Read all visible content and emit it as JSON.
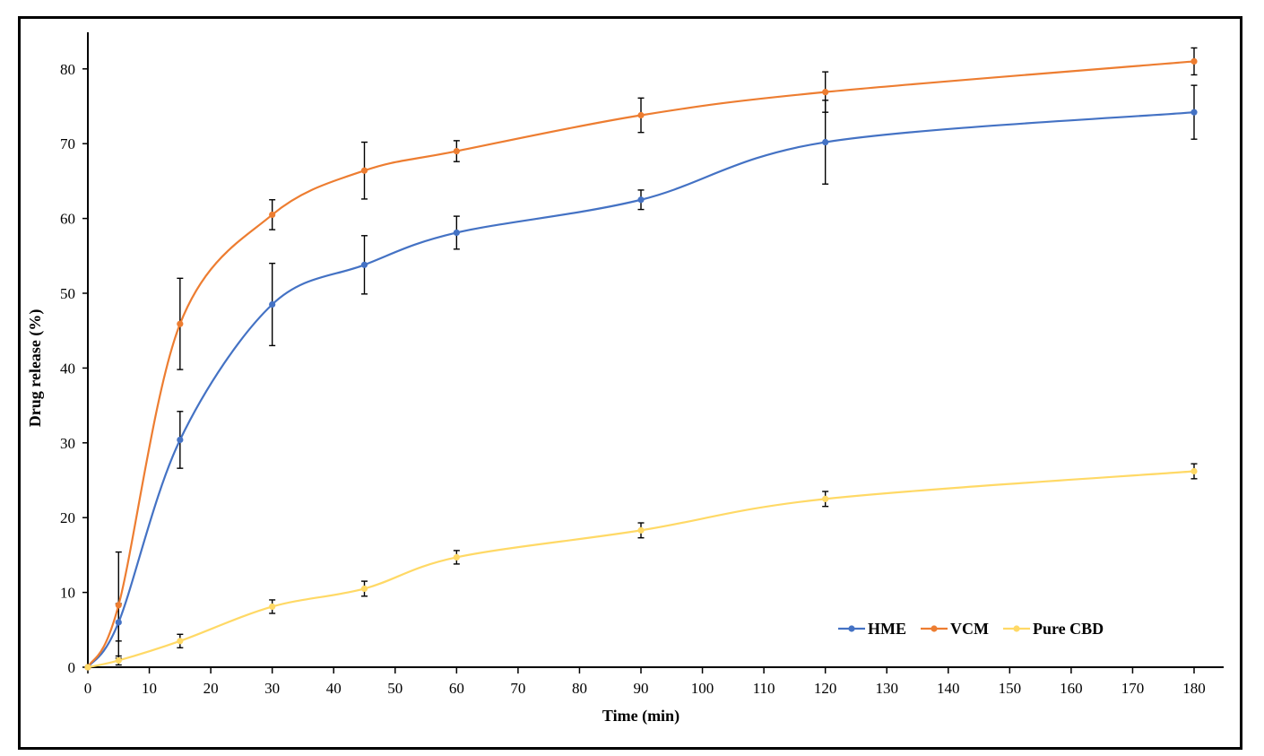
{
  "chart_data": {
    "type": "line",
    "xlabel": "Time (min)",
    "ylabel": "Drug release (%)",
    "xlim": [
      0,
      180
    ],
    "ylim": [
      0,
      85
    ],
    "xticks": [
      0,
      10,
      20,
      30,
      40,
      50,
      60,
      70,
      80,
      90,
      100,
      110,
      120,
      130,
      140,
      150,
      160,
      170,
      180
    ],
    "yticks": [
      0,
      10,
      20,
      30,
      40,
      50,
      60,
      70,
      80
    ],
    "x": [
      0,
      5,
      15,
      30,
      45,
      60,
      90,
      120,
      180
    ],
    "grid": false,
    "legend_position": "bottom-right",
    "series": [
      {
        "name": "HME",
        "color": "#4472C4",
        "values": [
          0,
          6.0,
          30.4,
          48.5,
          53.8,
          58.1,
          62.5,
          70.2,
          74.2
        ],
        "errors": [
          0,
          2.5,
          3.8,
          5.5,
          3.9,
          2.2,
          1.3,
          5.6,
          3.6
        ]
      },
      {
        "name": "VCM",
        "color": "#ED7D31",
        "values": [
          0,
          8.3,
          45.9,
          60.5,
          66.4,
          69.0,
          73.8,
          76.9,
          81.0
        ],
        "errors": [
          0,
          7.1,
          6.1,
          2.0,
          3.8,
          1.4,
          2.3,
          2.7,
          1.8
        ]
      },
      {
        "name": "Pure CBD",
        "color": "#FFD966",
        "values": [
          0,
          0.9,
          3.5,
          8.1,
          10.5,
          14.7,
          18.3,
          22.5,
          26.2
        ],
        "errors": [
          0,
          0.6,
          0.9,
          0.9,
          1.0,
          0.9,
          1.0,
          1.0,
          1.0
        ]
      }
    ]
  }
}
